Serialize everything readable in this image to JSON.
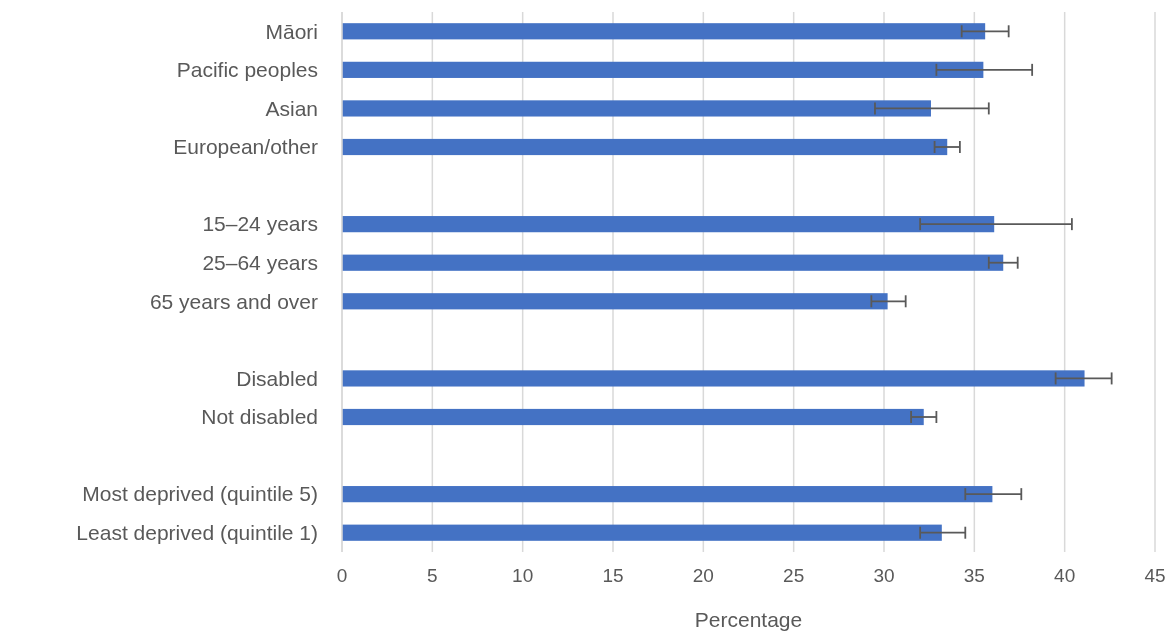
{
  "chart_data": {
    "type": "bar",
    "orientation": "horizontal",
    "xlabel": "Percentage",
    "categories": [
      "Māori",
      "Pacific peoples",
      "Asian",
      "European/other",
      null,
      "15–24 years",
      "25–64 years",
      "65 years and over",
      null,
      "Disabled",
      "Not disabled",
      null,
      "Most deprived (quintile 5)",
      "Least deprived (quintile 1)"
    ],
    "values": [
      35.6,
      35.5,
      32.6,
      33.5,
      null,
      36.1,
      36.6,
      30.2,
      null,
      41.1,
      32.2,
      null,
      36.0,
      33.2
    ],
    "errors": [
      [
        34.3,
        36.9
      ],
      [
        32.9,
        38.2
      ],
      [
        29.5,
        35.8
      ],
      [
        32.8,
        34.2
      ],
      null,
      [
        32.0,
        40.4
      ],
      [
        35.8,
        37.4
      ],
      [
        29.3,
        31.2
      ],
      null,
      [
        39.5,
        42.6
      ],
      [
        31.5,
        32.9
      ],
      null,
      [
        34.5,
        37.6
      ],
      [
        32.0,
        34.5
      ]
    ],
    "color": "#4472c4",
    "xlim": [
      0,
      45
    ],
    "xticks": [
      0,
      5,
      10,
      15,
      20,
      25,
      30,
      35,
      40,
      45
    ],
    "grid": "x"
  }
}
